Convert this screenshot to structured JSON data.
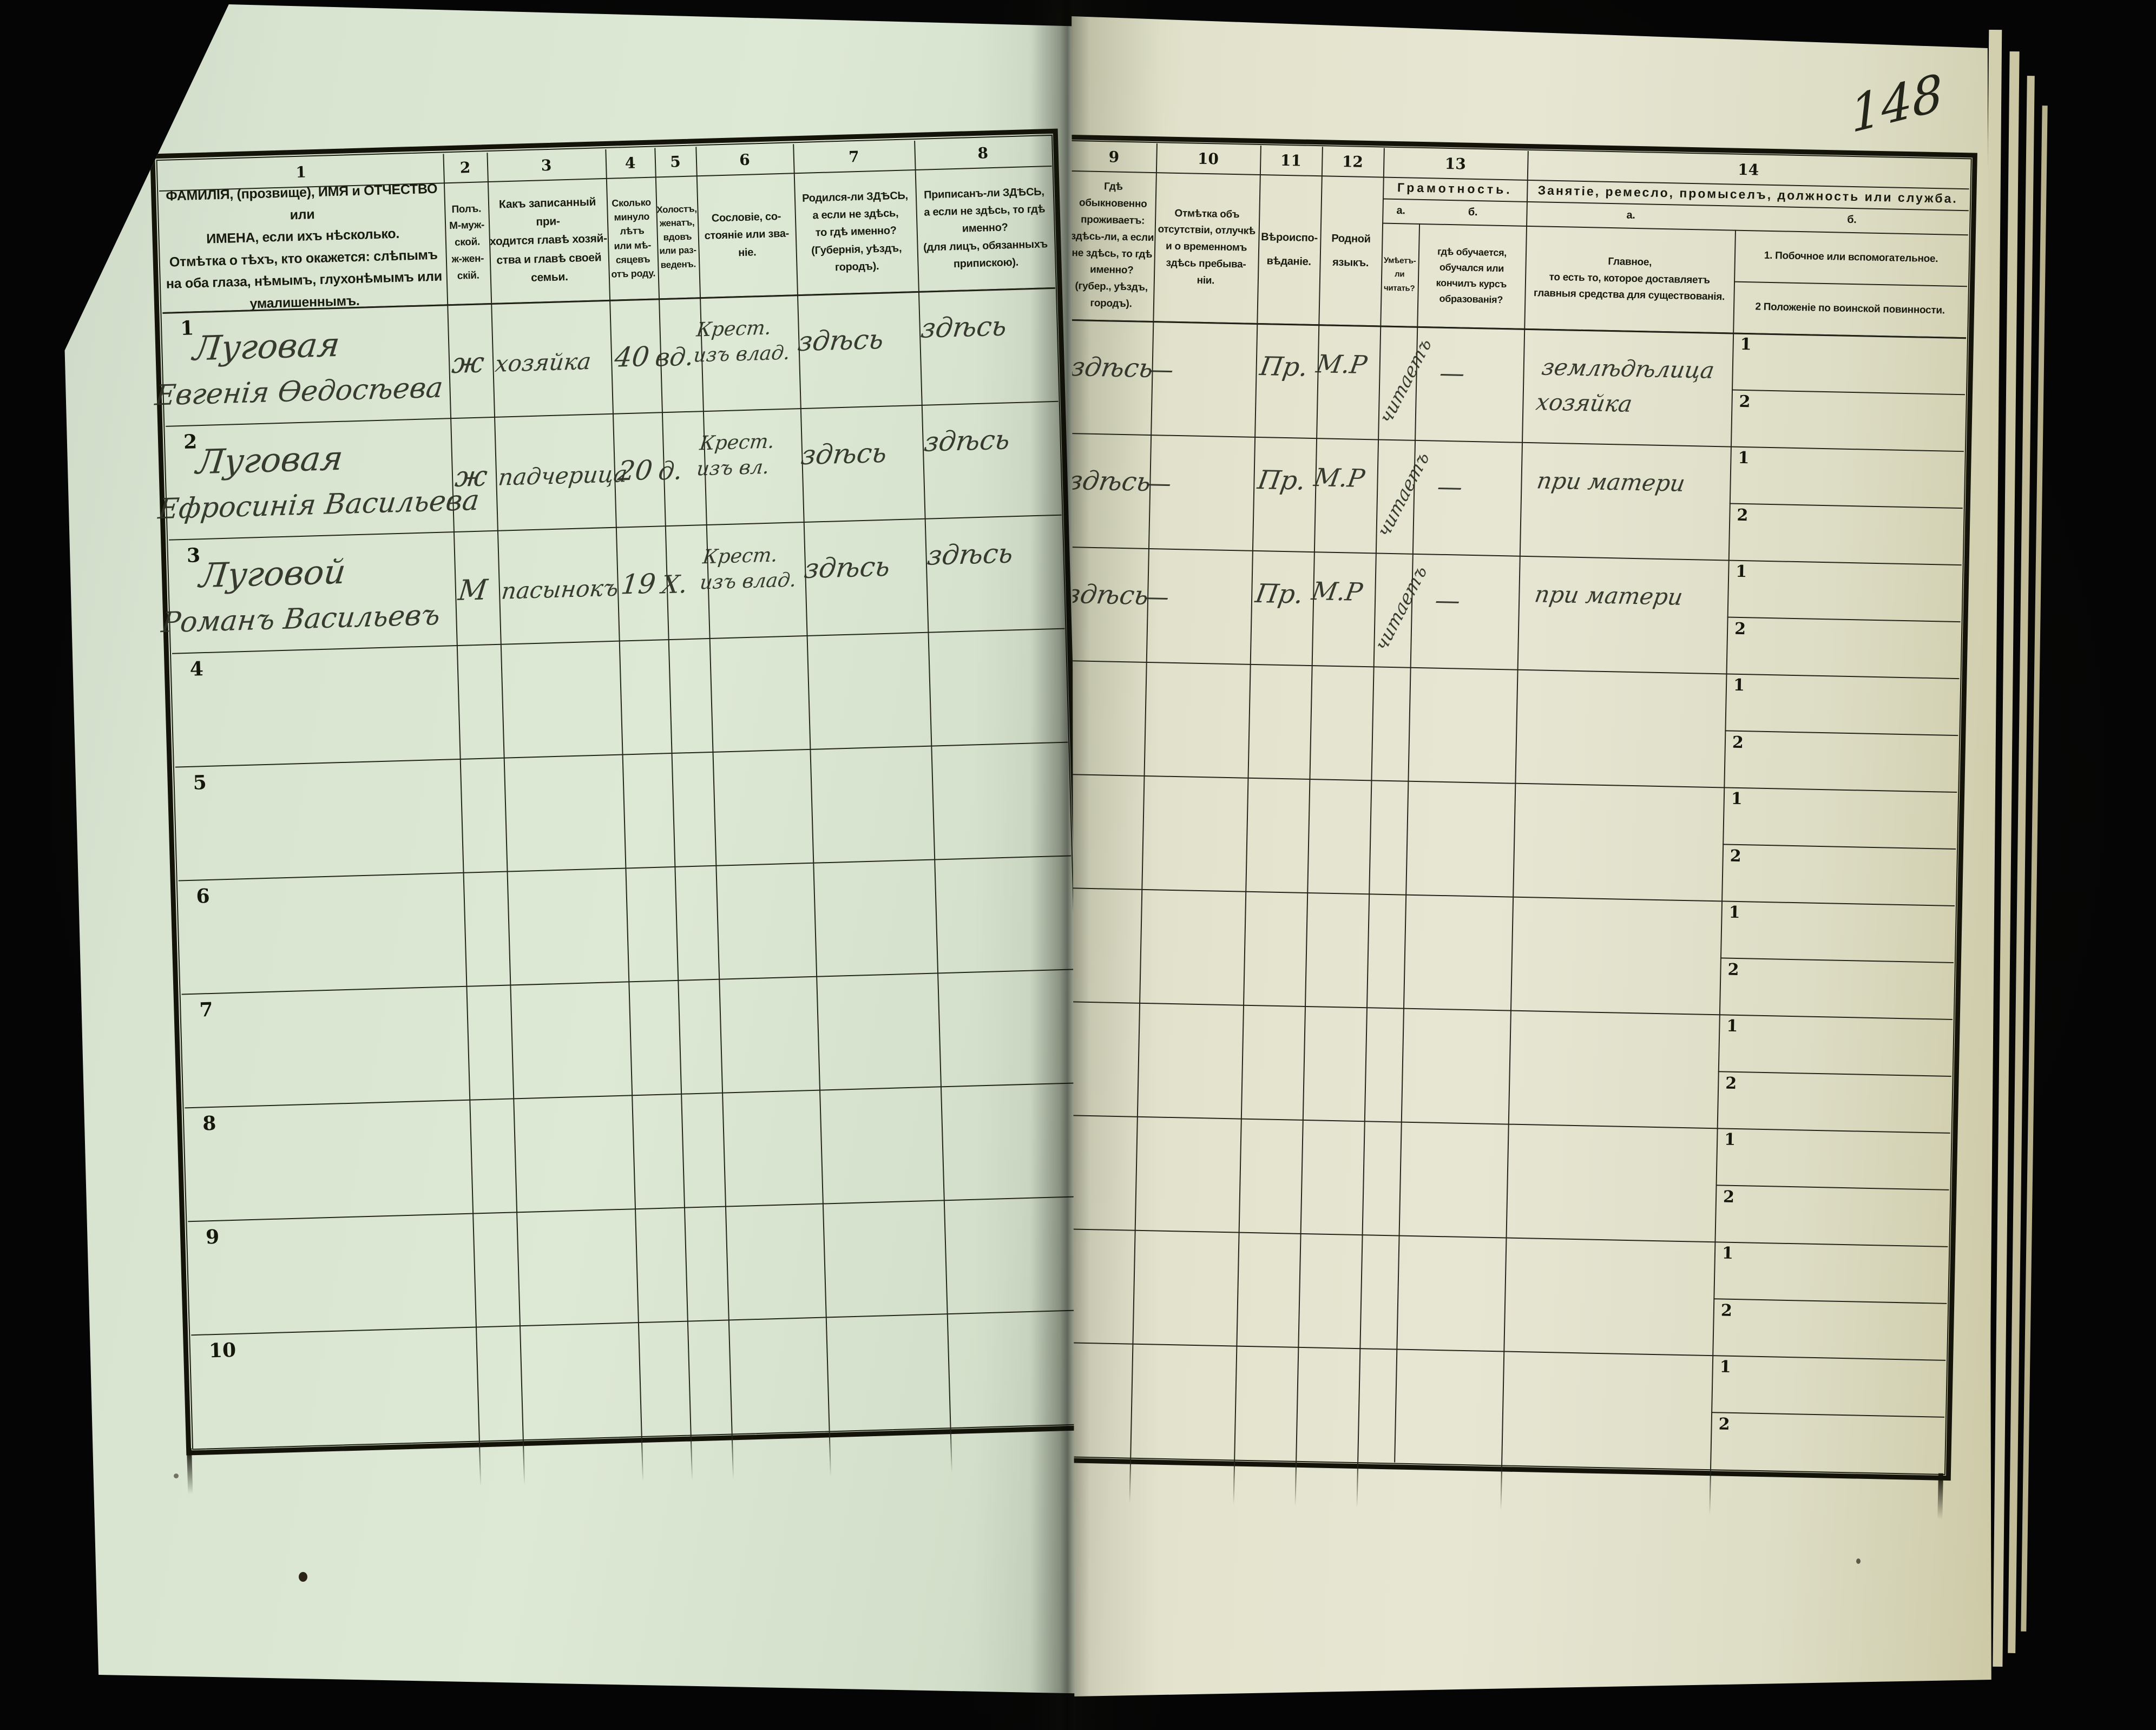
{
  "page_number": "148",
  "colors": {
    "background": "#060606",
    "left_paper": "#dbe6d2",
    "right_paper": "#e6e5d1",
    "rule_line": "#24251a",
    "print_ink": "#1a1b10",
    "hand_ink": "#2d3025"
  },
  "left_table": {
    "columns": [
      {
        "num": "1",
        "text": "ФАМИЛІЯ, (прозвище), ИМЯ и ОТЧЕСТВО или\nИМЕНА, если ихъ нѣсколько.\nОтмѣтка о тѣхъ, кто окажется: слѣпымъ\nна оба глаза, нѣмымъ, глухонѣмымъ или\nумалишеннымъ."
      },
      {
        "num": "2",
        "text": "Полъ.\nМ-муж-\nской.\nж-жен-\nскій."
      },
      {
        "num": "3",
        "text": "Какъ записанный при-\nходится главѣ хозяй-\nства и главѣ своей\nсемьи."
      },
      {
        "num": "4",
        "text": "Сколько\nминуло\nлѣтъ\nили мѣ-\nсяцевъ\nотъ роду."
      },
      {
        "num": "5",
        "text": "Холостъ,\nженатъ,\nвдовъ\nили раз-\nведенъ."
      },
      {
        "num": "6",
        "text": "Сословіе, со-\nстояніе или зва-\nніе."
      },
      {
        "num": "7",
        "text": "Родился-ли ЗДѢСЬ,\nа если не здѣсь,\nто гдѣ именно?\n(Губернія, уѣздъ, городъ)."
      },
      {
        "num": "8",
        "text": "Приписанъ-ли ЗДѢСЬ,\nа если не здѣсь, то гдѣ\nименно?\n(для лицъ, обязанныхъ\nприпискою)."
      }
    ]
  },
  "right_table": {
    "columns": [
      {
        "num": "9",
        "text": "Гдѣ обыкновенно\nпроживаетъ:\nздѣсь-ли, а если\nне здѣсь, то гдѣ\nименно?\n(губер., уѣздъ, городъ)."
      },
      {
        "num": "10",
        "text": "Отмѣтка объ\nотсутствіи, отлучкѣ\nи о временномъ\nздѣсь пребыва-\nніи."
      },
      {
        "num": "11",
        "text": "Вѣроиспо-\nвѣданіе."
      },
      {
        "num": "12",
        "text": "Родной\nязыкъ."
      }
    ],
    "col13": {
      "num": "13",
      "title": "Грамотность.",
      "a_label": "а.",
      "b_label": "б.",
      "a_text": "Умѣетъ-\nли\nчитать?",
      "b_text": "гдѣ обучается,\nобучался или\nкончилъ курсъ\nобразованія?"
    },
    "col14": {
      "num": "14",
      "title": "Занятіе, ремесло, промыселъ, должность или служба.",
      "a_label": "а.",
      "b_label": "б.",
      "a_text": "Главное,\nто есть то, которое доставляетъ\nглавныя средства для существованія.",
      "b_item1": "1. Побочное или вспомогательное.",
      "b_item2": "2  Положеніе по воинской повинности."
    },
    "subrow_labels": [
      "1",
      "2"
    ]
  },
  "rows": [
    {
      "num": "1",
      "name1": "Луговая",
      "name2": "Евгенія Ѳедосѣева",
      "sex": "ж",
      "relation": "хозяйка",
      "age": "40",
      "marital": "вд.",
      "estate": "Крест.\nизъ влад.",
      "born": "здѣсь",
      "registered": "здѣсь",
      "resides": "здѣсь",
      "absence": "—",
      "religion": "Пр.",
      "language": "М.Р",
      "literacy": "читаетъ",
      "education": "—",
      "occupation": "землѣдѣлица\nхозяйка"
    },
    {
      "num": "2",
      "name1": "Луговая",
      "name2": "Ефросинія Васильева",
      "sex": "ж",
      "relation": "падчерица",
      "age": "20",
      "marital": "д.",
      "estate": "Крест.\nизъ вл.",
      "born": "здѣсь",
      "registered": "здѣсь",
      "resides": "здѣсь",
      "absence": "—",
      "religion": "Пр.",
      "language": "М.Р",
      "literacy": "читаетъ",
      "education": "—",
      "occupation": "при матери"
    },
    {
      "num": "3",
      "name1": "Луговой",
      "name2": "Романъ Васильевъ",
      "sex": "М",
      "relation": "пасынокъ",
      "age": "19",
      "marital": "Х.",
      "estate": "Крест.\nизъ влад.",
      "born": "здѣсь",
      "registered": "здѣсь",
      "resides": "здѣсь",
      "absence": "—",
      "religion": "Пр.",
      "language": "М.Р",
      "literacy": "читаетъ",
      "education": "—",
      "occupation": "при матери"
    },
    {
      "num": "4",
      "name1": "",
      "name2": "",
      "sex": "",
      "relation": "",
      "age": "",
      "marital": "",
      "estate": "",
      "born": "",
      "registered": "",
      "resides": "",
      "absence": "",
      "religion": "",
      "language": "",
      "literacy": "",
      "education": "",
      "occupation": ""
    },
    {
      "num": "5",
      "name1": "",
      "name2": "",
      "sex": "",
      "relation": "",
      "age": "",
      "marital": "",
      "estate": "",
      "born": "",
      "registered": "",
      "resides": "",
      "absence": "",
      "religion": "",
      "language": "",
      "literacy": "",
      "education": "",
      "occupation": ""
    },
    {
      "num": "6",
      "name1": "",
      "name2": "",
      "sex": "",
      "relation": "",
      "age": "",
      "marital": "",
      "estate": "",
      "born": "",
      "registered": "",
      "resides": "",
      "absence": "",
      "religion": "",
      "language": "",
      "literacy": "",
      "education": "",
      "occupation": ""
    },
    {
      "num": "7",
      "name1": "",
      "name2": "",
      "sex": "",
      "relation": "",
      "age": "",
      "marital": "",
      "estate": "",
      "born": "",
      "registered": "",
      "resides": "",
      "absence": "",
      "religion": "",
      "language": "",
      "literacy": "",
      "education": "",
      "occupation": ""
    },
    {
      "num": "8",
      "name1": "",
      "name2": "",
      "sex": "",
      "relation": "",
      "age": "",
      "marital": "",
      "estate": "",
      "born": "",
      "registered": "",
      "resides": "",
      "absence": "",
      "religion": "",
      "language": "",
      "literacy": "",
      "education": "",
      "occupation": ""
    },
    {
      "num": "9",
      "name1": "",
      "name2": "",
      "sex": "",
      "relation": "",
      "age": "",
      "marital": "",
      "estate": "",
      "born": "",
      "registered": "",
      "resides": "",
      "absence": "",
      "religion": "",
      "language": "",
      "literacy": "",
      "education": "",
      "occupation": ""
    },
    {
      "num": "10",
      "name1": "",
      "name2": "",
      "sex": "",
      "relation": "",
      "age": "",
      "marital": "",
      "estate": "",
      "born": "",
      "registered": "",
      "resides": "",
      "absence": "",
      "religion": "",
      "language": "",
      "literacy": "",
      "education": "",
      "occupation": ""
    }
  ]
}
